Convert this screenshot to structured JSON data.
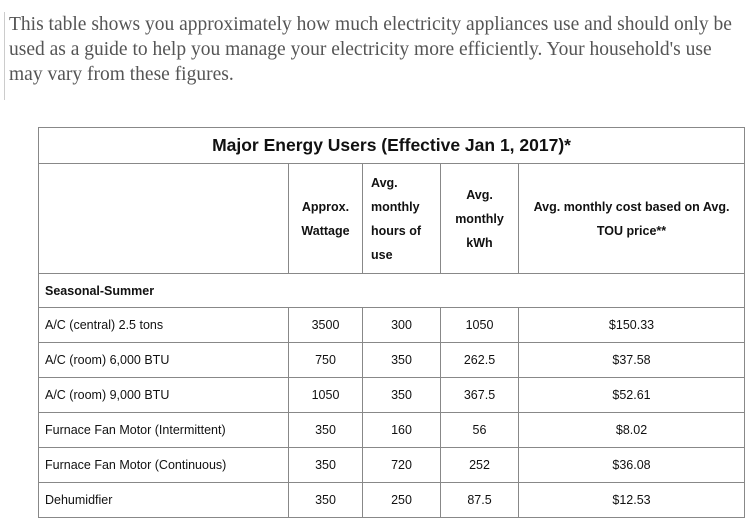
{
  "intro": "This table shows you approximately how much electricity appliances use and should only be used as a guide to help you manage your electricity more efficiently. Your household's use may vary from these figures.",
  "table": {
    "title": "Major Energy Users (Effective Jan 1, 2017)*",
    "headers": [
      "Approx. Wattage",
      "Avg. monthly hours of use",
      "Avg. monthly kWh",
      "Avg. monthly cost based on Avg. TOU price**"
    ],
    "section": "Seasonal-Summer",
    "rows": [
      [
        "A/C (central) 2.5 tons",
        3500,
        300,
        1050,
        "$150.33"
      ],
      [
        "A/C (room) 6,000 BTU",
        750,
        350,
        262.5,
        "$37.58"
      ],
      [
        "A/C (room) 9,000 BTU",
        1050,
        350,
        367.5,
        "$52.61"
      ],
      [
        "Furnace Fan Motor (Intermittent)",
        350,
        160,
        56,
        "$8.02"
      ],
      [
        "Furnace Fan Motor (Continuous)",
        350,
        720,
        252,
        "$36.08"
      ],
      [
        "Dehumidfier",
        350,
        250,
        87.5,
        "$12.53"
      ]
    ]
  }
}
